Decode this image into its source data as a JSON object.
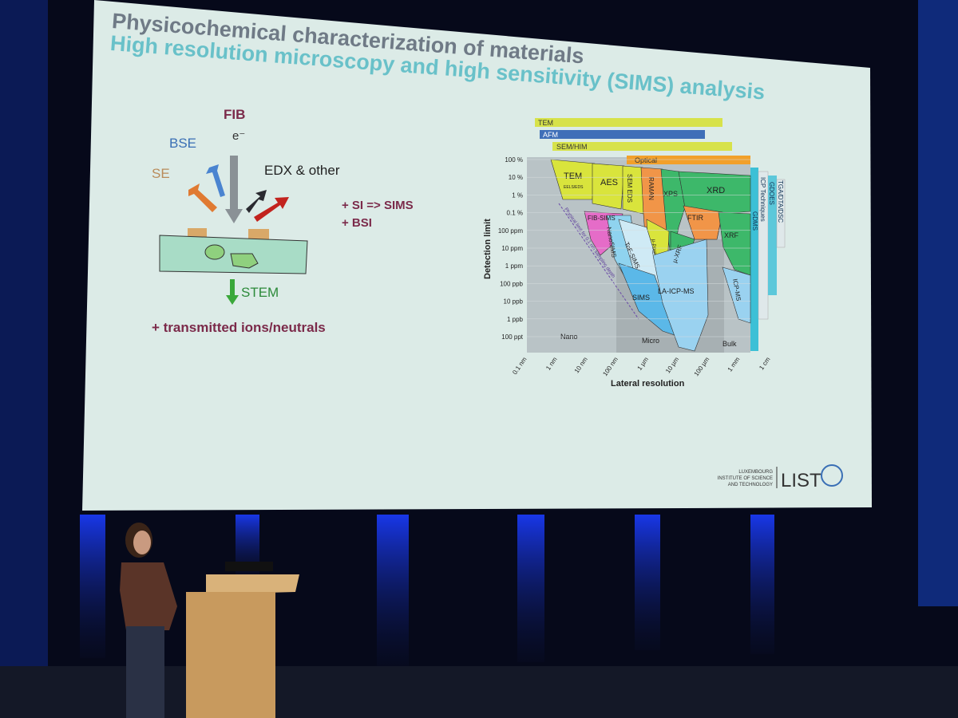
{
  "slide": {
    "title": "Physicochemical characterization of materials",
    "subtitle": "High resolution microscopy and high sensitivity (SIMS) analysis",
    "beam_diagram": {
      "fib": "FIB",
      "electron": "e⁻",
      "bse": "BSE",
      "se": "SE",
      "edx": "EDX & other",
      "stem": "STEM",
      "transmitted": "+ transmitted ions/neutrals",
      "si_sims": "+ SI => SIMS",
      "bsi": "+ BSI"
    },
    "technique_map": {
      "y_label": "Detection limit",
      "x_label": "Lateral resolution",
      "y_ticks": [
        "100 %",
        "10 %",
        "1 %",
        "0.1 %",
        "100 ppm",
        "10 ppm",
        "1 ppm",
        "100 ppb",
        "10 ppb",
        "1 ppb",
        "100 ppt"
      ],
      "x_ticks": [
        "0.1 nm",
        "1 nm",
        "10 nm",
        "100 nm",
        "1 µm",
        "10 µm",
        "100 µm",
        "1 mm",
        "1 cm"
      ],
      "top_bars": [
        "TEM",
        "AFM",
        "SEM/HIM",
        "Optical"
      ],
      "side_bars": [
        "GDMS",
        "ICP Techniques",
        "TGA/DTA/DSC",
        "GDOES"
      ],
      "regions": [
        "TEM",
        "EELS/EDS",
        "AES",
        "SEM EDS",
        "RAMAN",
        "XPS",
        "XRD",
        "FTIR",
        "XRF",
        "µ-XRF",
        "µ-PIXE",
        "FIB-SIMS",
        "NanoSIMS",
        "ToF-SIMS",
        "SIMS",
        "LA-ICP-MS",
        "ICP-MS",
        "Physical limit for 0.1 nm sampling depth"
      ],
      "zones": [
        "Nano",
        "Micro",
        "Bulk"
      ]
    },
    "logo": {
      "line1": "LUXEMBOURG",
      "line2": "INSTITUTE OF SCIENCE",
      "line3": "AND TECHNOLOGY",
      "name": "LIST"
    }
  }
}
